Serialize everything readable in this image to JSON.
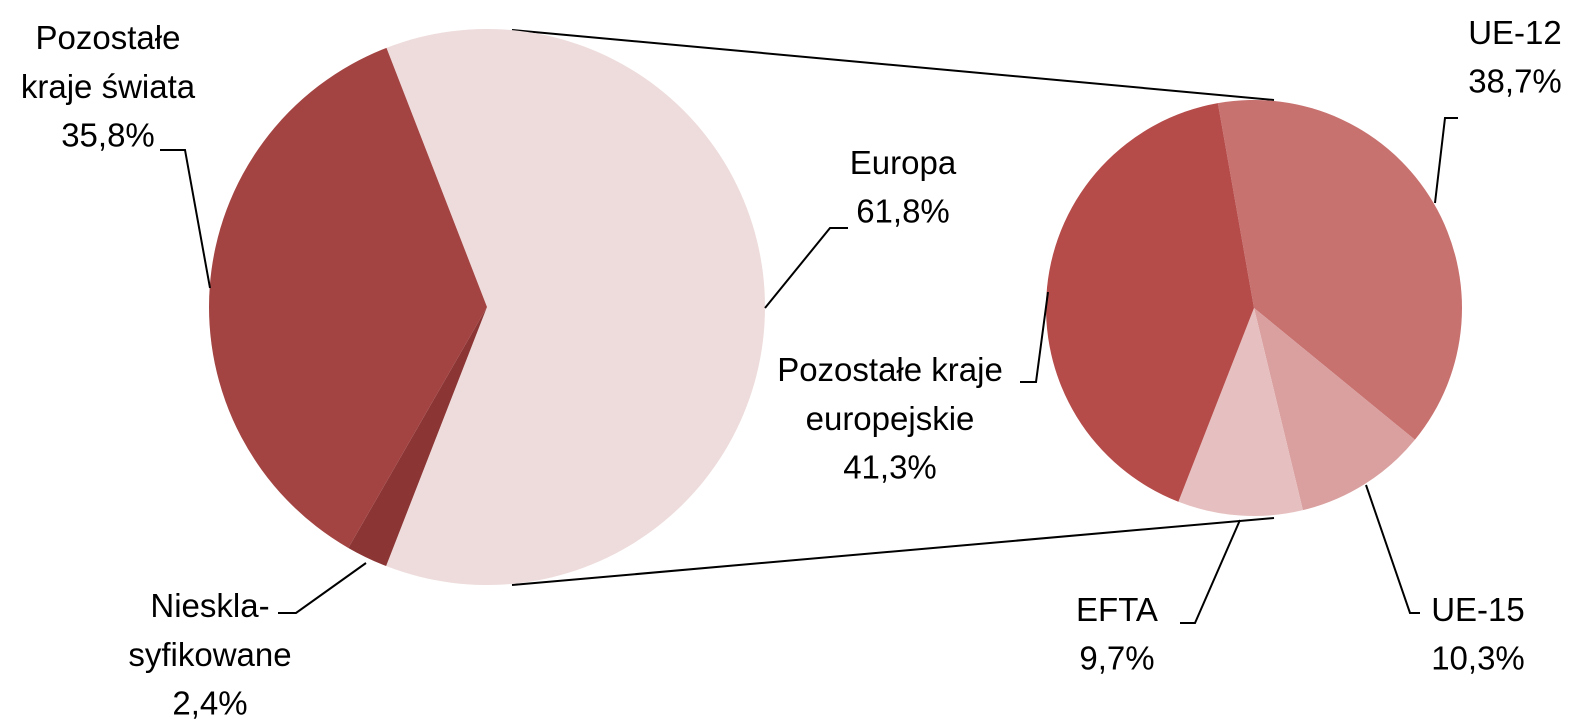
{
  "chart_data": [
    {
      "type": "pie",
      "categories": [
        "Europa",
        "Nieskla-\nsyfikowane",
        "Pozostałe\nkraje świata"
      ],
      "values": [
        61.8,
        2.4,
        35.8
      ],
      "value_labels": [
        "61,8%",
        "2,4%",
        "35,8%"
      ],
      "colors": [
        "#eedcdc",
        "#8b3535",
        "#a34442"
      ]
    },
    {
      "type": "pie",
      "categories": [
        "UE-12",
        "UE-15",
        "EFTA",
        "Pozostałe kraje\neuropejskie"
      ],
      "values": [
        38.7,
        10.3,
        9.7,
        41.3
      ],
      "value_labels": [
        "38,7%",
        "10,3%",
        "9,7%",
        "41,3%"
      ],
      "colors": [
        "#c87270",
        "#d9a09f",
        "#e6c0c0",
        "#b54c4a"
      ]
    }
  ]
}
